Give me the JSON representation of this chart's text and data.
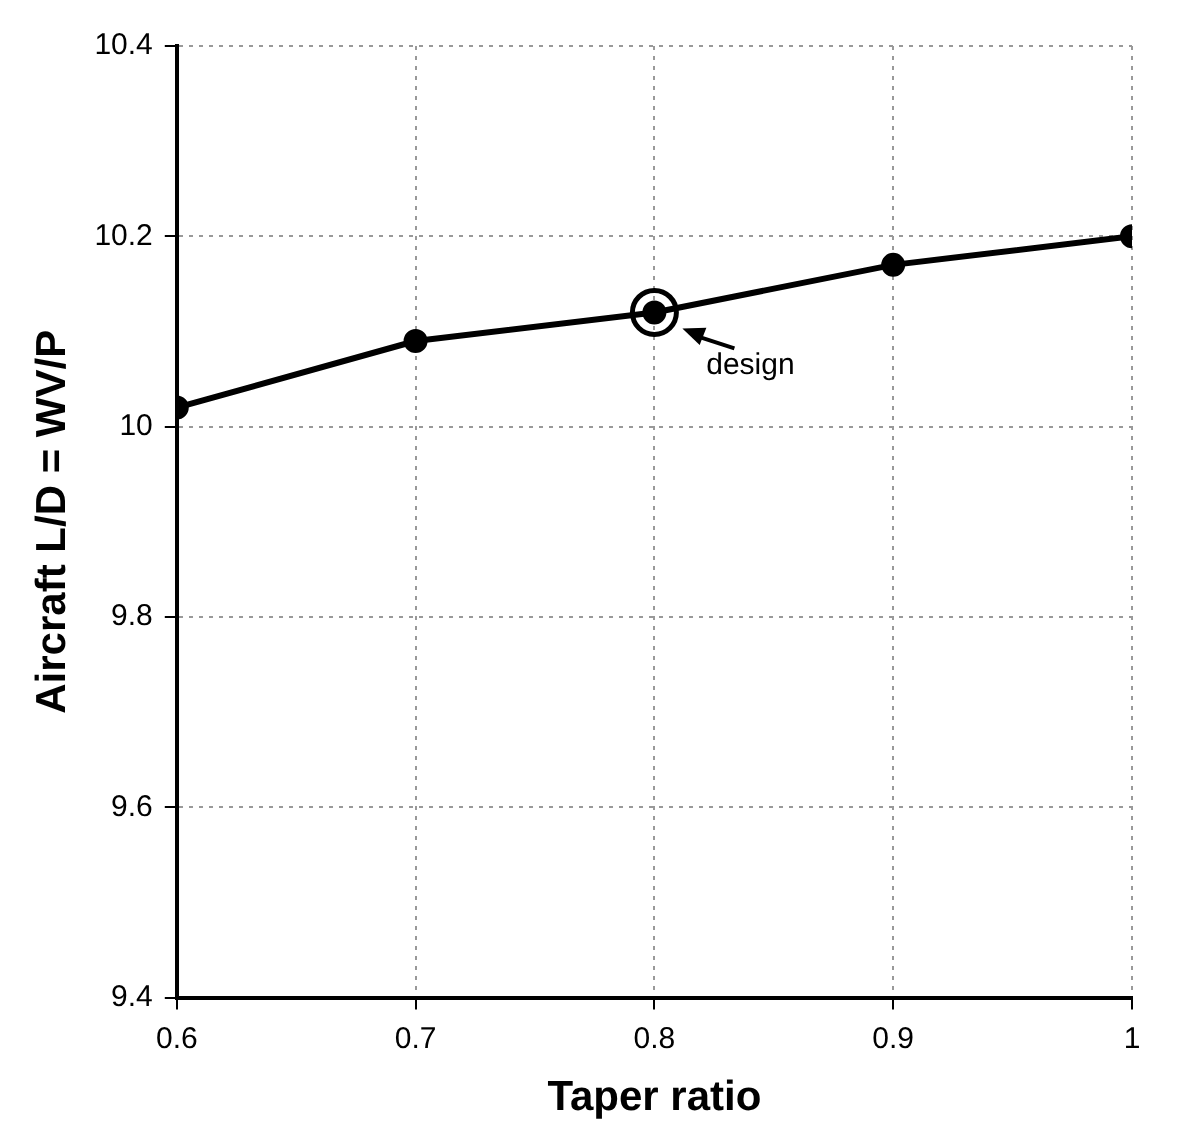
{
  "chart_data": {
    "type": "line",
    "xlabel": "Taper ratio",
    "ylabel": "Aircraft L/D = WV/P",
    "x": [
      0.6,
      0.7,
      0.8,
      0.9,
      1
    ],
    "series": [
      {
        "color": "#000000",
        "values": [
          10.02,
          10.09,
          10.12,
          10.17,
          10.2
        ]
      }
    ],
    "xlim": [
      0.6,
      1
    ],
    "xticks": [
      0.6,
      0.7,
      0.8,
      0.9,
      1
    ],
    "ylim": [
      9.4,
      10.4
    ],
    "yticks": [
      9.4,
      9.6,
      9.8,
      10,
      10.2,
      10.4
    ],
    "grid": true,
    "legend": false,
    "marker": "circle",
    "line_style": "solid",
    "annotations": [
      {
        "text": "design",
        "x": 0.8,
        "y": 10.12
      }
    ]
  }
}
